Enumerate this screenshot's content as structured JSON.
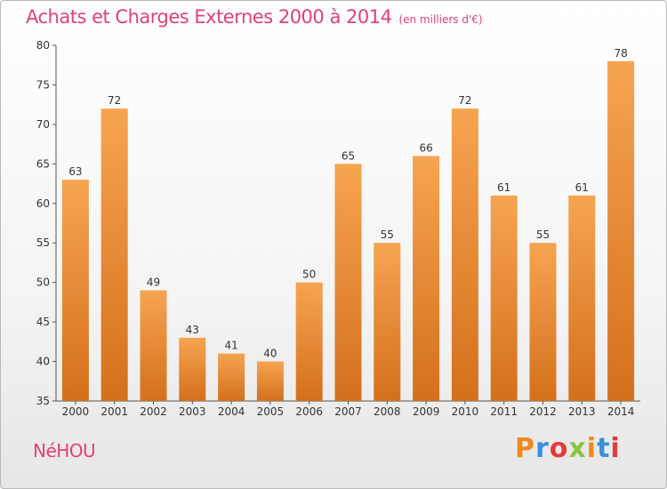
{
  "header": {
    "title": "Achats et Charges Externes 2000 à 2014",
    "unit": "(en milliers d'€)"
  },
  "footer": {
    "commune": "NéHOU",
    "logo_letters": [
      "P",
      "r",
      "o",
      "x",
      "i",
      "t",
      "i"
    ],
    "logo_colors": [
      "#f08a1c",
      "#3b8fd6",
      "#e23b3b",
      "#8bc53f",
      "#f08a1c",
      "#3b8fd6",
      "#e23b3b"
    ]
  },
  "colors": {
    "bar_top": "#f6a451",
    "bar_bottom": "#d4701c",
    "title": "#e0407a"
  },
  "chart_data": {
    "type": "bar",
    "title": "Achats et Charges Externes 2000 à 2014",
    "subtitle": "(en milliers d'€)",
    "categories": [
      "2000",
      "2001",
      "2002",
      "2003",
      "2004",
      "2005",
      "2006",
      "2007",
      "2008",
      "2009",
      "2010",
      "2011",
      "2012",
      "2013",
      "2014"
    ],
    "values": [
      63,
      72,
      49,
      43,
      41,
      40,
      50,
      65,
      55,
      66,
      72,
      61,
      55,
      61,
      78
    ],
    "ylim": [
      35,
      80
    ],
    "yticks": [
      35,
      40,
      45,
      50,
      55,
      60,
      65,
      70,
      75,
      80
    ],
    "grid": false,
    "legend": "none",
    "xlabel": "",
    "ylabel": ""
  }
}
